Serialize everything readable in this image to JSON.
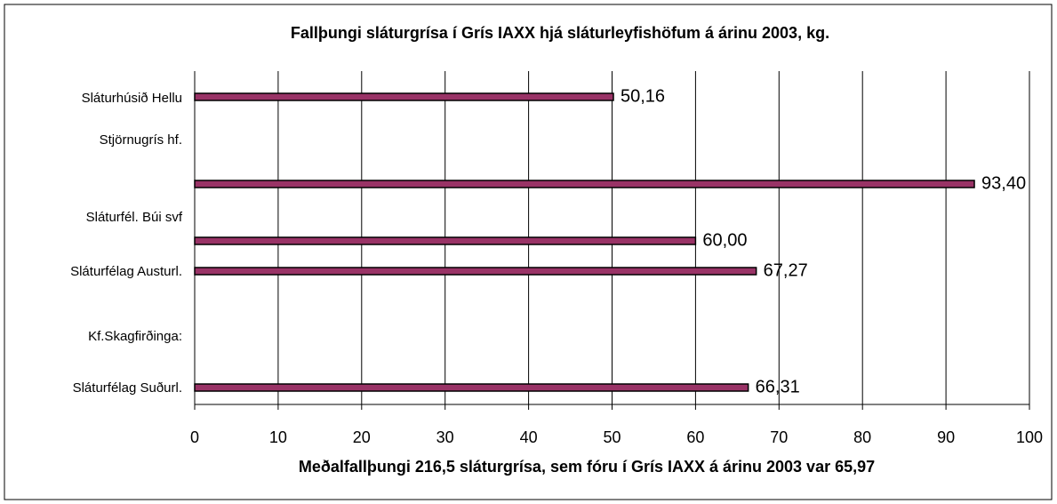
{
  "chart_data": {
    "type": "bar",
    "orientation": "horizontal",
    "title": "Fallþungi sláturgrísa í Grís IAXX hjá sláturleyfishöfum  á árinu 2003, kg.",
    "x_label": "Meðalfallþungi 216,5 sláturgrísa, sem fóru í Grís IAXX á árinu 2003 var 65,97",
    "categories": [
      "Sláturhúsið Hellu",
      "Stjörnugrís hf.",
      null,
      "Sláturfél. Búi svf",
      null,
      "Sláturfélag Austurl.",
      "Kf.Skagfirðinga:",
      "Sláturfélag Suðurl."
    ],
    "values": [
      50.16,
      null,
      93.4,
      null,
      60.0,
      67.27,
      null,
      66.31
    ],
    "value_labels": [
      "50,16",
      null,
      "93,40",
      null,
      "60,00",
      "67,27",
      null,
      "66,31"
    ],
    "color": "#993366",
    "xlim": [
      0,
      100
    ],
    "xticks": [
      0,
      10,
      20,
      30,
      40,
      50,
      60,
      70,
      80,
      90,
      100
    ],
    "grid": true
  }
}
